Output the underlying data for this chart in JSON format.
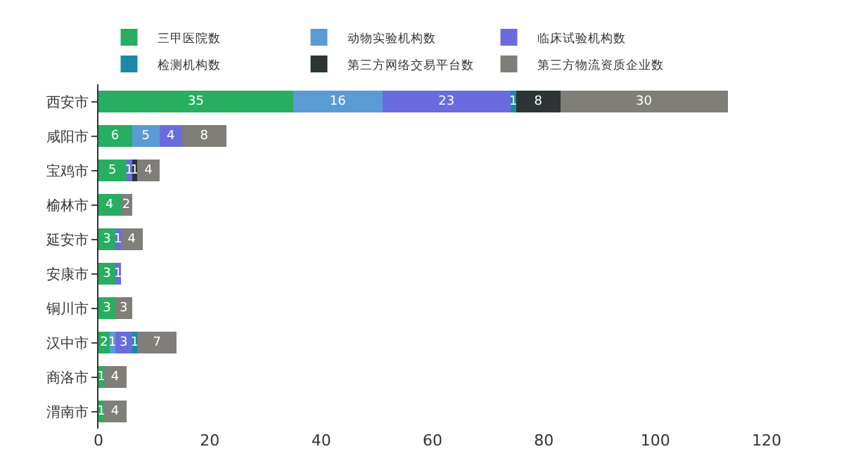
{
  "chart_data": {
    "type": "bar",
    "orientation": "horizontal",
    "stacked": true,
    "data_labels": true,
    "legend": "top",
    "categories": [
      "西安市",
      "咸阳市",
      "宝鸡市",
      "榆林市",
      "延安市",
      "安康市",
      "铜川市",
      "汉中市",
      "商洛市",
      "渭南市"
    ],
    "series": [
      {
        "name": "三甲医院数",
        "color": "#27ae60",
        "values": [
          35,
          6,
          5,
          4,
          3,
          3,
          3,
          2,
          1,
          1
        ]
      },
      {
        "name": "动物实验机构数",
        "color": "#5b9bd5",
        "values": [
          16,
          5,
          null,
          null,
          null,
          null,
          null,
          1,
          null,
          null
        ]
      },
      {
        "name": "临床试验机构数",
        "color": "#6b6be0",
        "values": [
          23,
          4,
          1,
          null,
          1,
          1,
          null,
          3,
          null,
          null
        ]
      },
      {
        "name": "检测机构数",
        "color": "#1c8aa6",
        "values": [
          1,
          null,
          null,
          null,
          null,
          null,
          null,
          1,
          null,
          null
        ]
      },
      {
        "name": "第三方网络交易平台数",
        "color": "#2d3436",
        "values": [
          8,
          null,
          1,
          null,
          null,
          null,
          null,
          null,
          null,
          null
        ]
      },
      {
        "name": "第三方物流资质企业数",
        "color": "#7f7e78",
        "values": [
          30,
          8,
          4,
          2,
          4,
          null,
          3,
          7,
          4,
          4
        ]
      }
    ],
    "xlim": [
      0,
      120
    ],
    "xticks": [
      0,
      20,
      40,
      60,
      80,
      100,
      120
    ]
  }
}
